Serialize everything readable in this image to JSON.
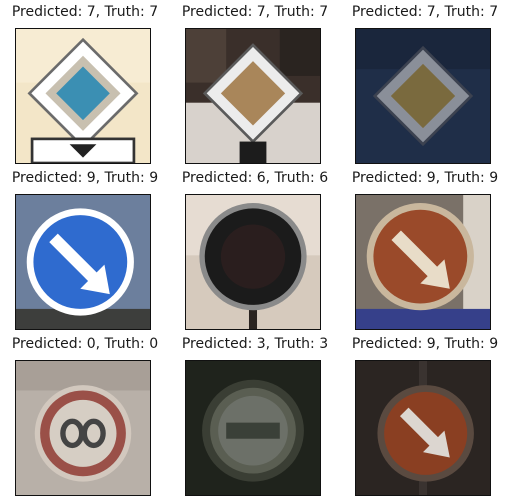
{
  "grid": {
    "items": [
      {
        "caption": "Predicted: 7, Truth: 7",
        "icon": "priority-road-sign-icon"
      },
      {
        "caption": "Predicted: 7, Truth: 7",
        "icon": "priority-road-sign-icon"
      },
      {
        "caption": "Predicted: 7, Truth: 7",
        "icon": "priority-road-sign-icon"
      },
      {
        "caption": "Predicted: 9, Truth: 9",
        "icon": "keep-right-sign-icon"
      },
      {
        "caption": "Predicted: 6, Truth: 6",
        "icon": "round-sign-icon"
      },
      {
        "caption": "Predicted: 9, Truth: 9",
        "icon": "keep-right-sign-icon"
      },
      {
        "caption": "Predicted: 0, Truth: 0",
        "icon": "speed-limit-sign-icon"
      },
      {
        "caption": "Predicted: 3, Truth: 3",
        "icon": "speed-limit-sign-icon"
      },
      {
        "caption": "Predicted: 9, Truth: 9",
        "icon": "keep-right-sign-icon"
      }
    ]
  }
}
